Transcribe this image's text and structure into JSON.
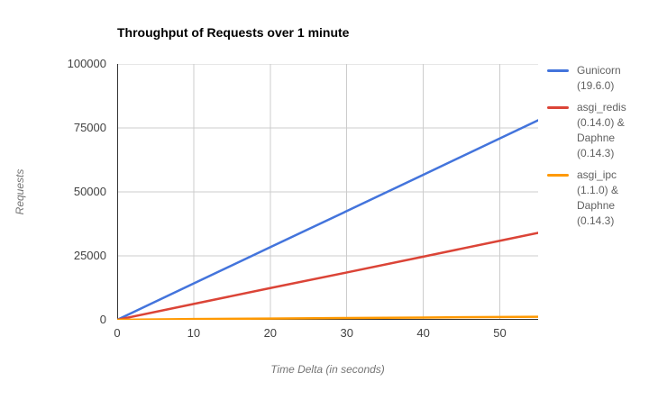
{
  "chart_data": {
    "type": "line",
    "title": "Throughput of Requests over 1 minute",
    "xlabel": "Time Delta (in seconds)",
    "ylabel": "Requests",
    "xlim": [
      0,
      55
    ],
    "ylim": [
      0,
      100000
    ],
    "grid": true,
    "legend_position": "right",
    "x_ticks": [
      0,
      10,
      20,
      30,
      40,
      50
    ],
    "y_ticks": [
      0,
      25000,
      50000,
      75000,
      100000
    ],
    "x": [
      0,
      10,
      20,
      30,
      40,
      50,
      55
    ],
    "series": [
      {
        "name": "Gunicorn (19.6.0)",
        "color": "#4374DC",
        "values": [
          0,
          14200,
          28400,
          42500,
          56700,
          70900,
          78000
        ]
      },
      {
        "name": "asgi_redis (0.14.0) & Daphne (0.14.3)",
        "color": "#DB4437",
        "values": [
          0,
          6200,
          12400,
          18500,
          24700,
          30900,
          34000
        ]
      },
      {
        "name": "asgi_ipc (1.1.0) & Daphne (0.14.3)",
        "color": "#FF9900",
        "values": [
          0,
          300,
          500,
          700,
          900,
          1100,
          1200
        ]
      }
    ],
    "colors": {
      "grid": "#cccccc",
      "axis": "#333333",
      "tick_text": "#424242",
      "legend_text": "#616161",
      "axis_title_text": "#757575",
      "title_text": "#000000",
      "background": "#ffffff"
    }
  }
}
